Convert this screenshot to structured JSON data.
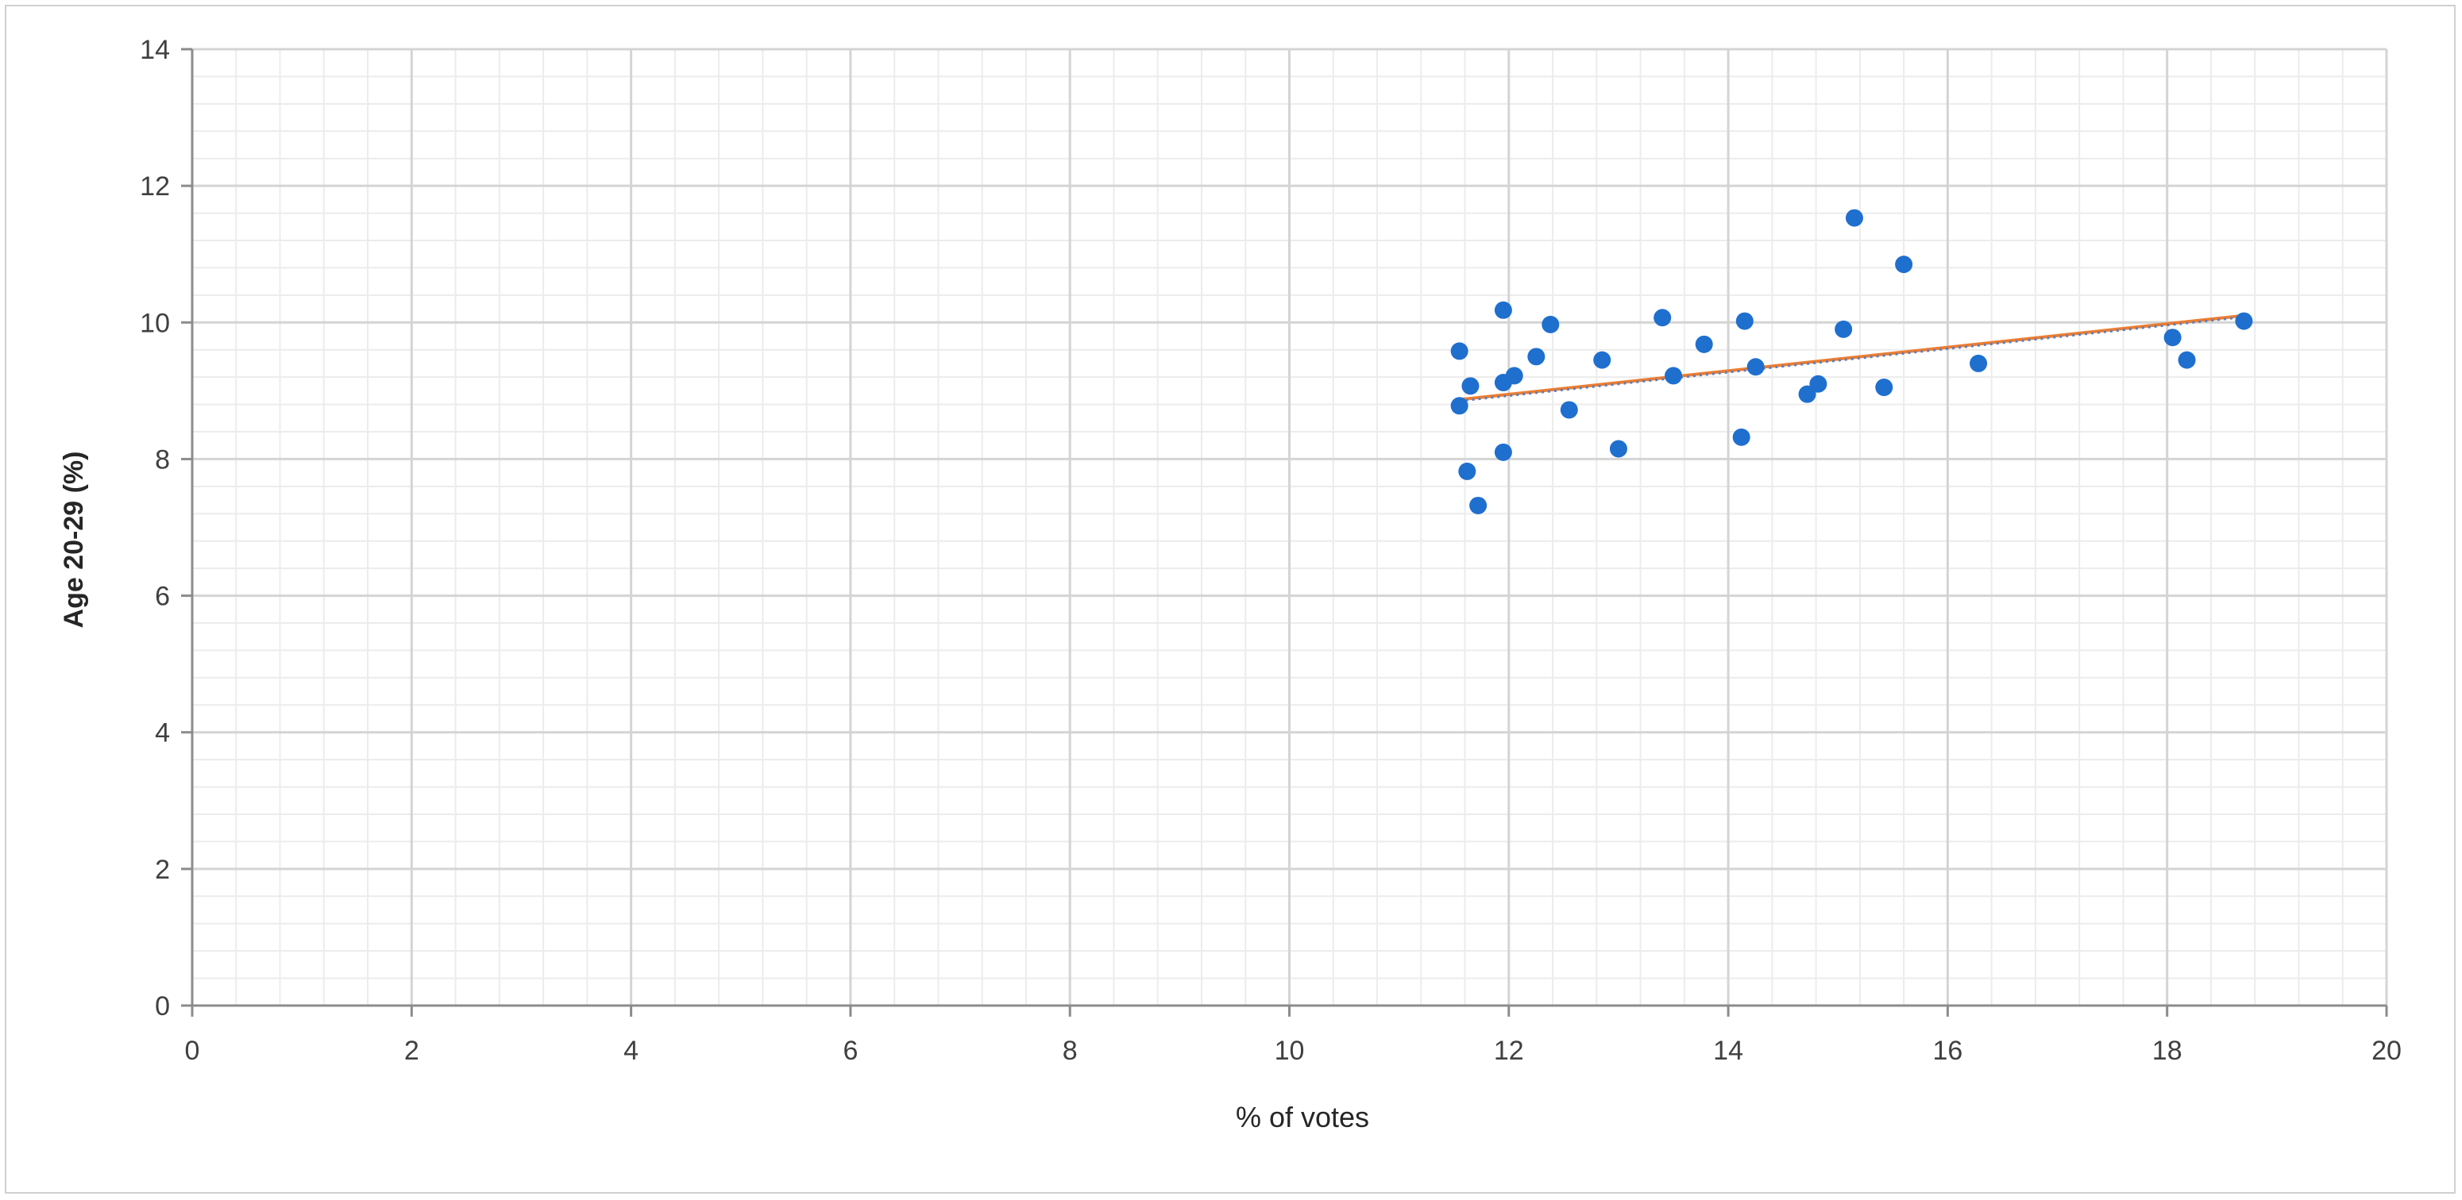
{
  "chart_data": {
    "type": "scatter",
    "title": "",
    "xlabel": "% of votes",
    "ylabel": "Age 20-29 (%)",
    "xlim": [
      0,
      20
    ],
    "ylim": [
      0,
      14
    ],
    "x_ticks": [
      "0",
      "2",
      "4",
      "6",
      "8",
      "10",
      "12",
      "14",
      "16",
      "18",
      "20"
    ],
    "y_ticks": [
      "0",
      "2",
      "4",
      "6",
      "8",
      "10",
      "12",
      "14"
    ],
    "grid": "major and minor",
    "point_color": "#1f6fcf",
    "series": [
      {
        "points": [
          {
            "x": 11.55,
            "y": 9.58
          },
          {
            "x": 11.55,
            "y": 8.78
          },
          {
            "x": 11.62,
            "y": 7.82
          },
          {
            "x": 11.65,
            "y": 9.07
          },
          {
            "x": 11.72,
            "y": 7.32
          },
          {
            "x": 11.95,
            "y": 10.18
          },
          {
            "x": 11.95,
            "y": 8.1
          },
          {
            "x": 11.95,
            "y": 9.12
          },
          {
            "x": 12.05,
            "y": 9.22
          },
          {
            "x": 12.25,
            "y": 9.5
          },
          {
            "x": 12.38,
            "y": 9.97
          },
          {
            "x": 12.55,
            "y": 8.72
          },
          {
            "x": 12.85,
            "y": 9.45
          },
          {
            "x": 13.0,
            "y": 8.15
          },
          {
            "x": 13.4,
            "y": 10.07
          },
          {
            "x": 13.5,
            "y": 9.22
          },
          {
            "x": 13.78,
            "y": 9.68
          },
          {
            "x": 14.15,
            "y": 10.02
          },
          {
            "x": 14.12,
            "y": 8.32
          },
          {
            "x": 14.25,
            "y": 9.35
          },
          {
            "x": 14.72,
            "y": 8.95
          },
          {
            "x": 14.82,
            "y": 9.1
          },
          {
            "x": 15.05,
            "y": 9.9
          },
          {
            "x": 15.15,
            "y": 11.53
          },
          {
            "x": 15.42,
            "y": 9.05
          },
          {
            "x": 15.6,
            "y": 10.85
          },
          {
            "x": 16.28,
            "y": 9.4
          },
          {
            "x": 18.05,
            "y": 9.78
          },
          {
            "x": 18.18,
            "y": 9.45
          },
          {
            "x": 18.7,
            "y": 10.02
          }
        ]
      }
    ],
    "trendlines": [
      {
        "color": "#ed7d31",
        "style": "solid",
        "x": [
          11.55,
          18.7
        ],
        "y": [
          8.87,
          10.1
        ]
      },
      {
        "color": "#5b7fbf",
        "style": "dotted",
        "x": [
          11.55,
          18.7
        ],
        "y": [
          8.85,
          10.08
        ]
      }
    ]
  }
}
